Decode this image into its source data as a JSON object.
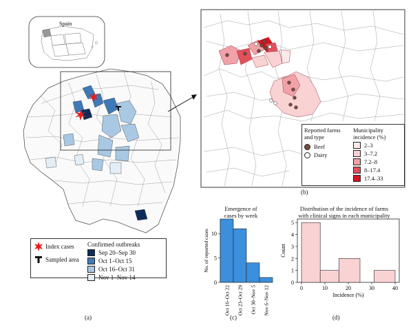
{
  "inset": {
    "label": "Spain"
  },
  "panel_a": {
    "label": "(a)",
    "legend_markers": {
      "index_label": "Index cases",
      "sampled_label": "Sampled area"
    },
    "outbreaks": {
      "title": "Confirmed outbreaks",
      "items": [
        {
          "label": "Sep 20–Sep 30",
          "color": "#0f2d5a"
        },
        {
          "label": "Oct 1–Oct 15",
          "color": "#3f79b8"
        },
        {
          "label": "Oct 16–Oct 31",
          "color": "#a9c8e3"
        },
        {
          "label": "Nov 1–Nov 14",
          "color": "#e4eef7"
        }
      ]
    }
  },
  "panel_b": {
    "label": "(b)",
    "farms_title_1": "Reported farms",
    "farms_title_2": "and type",
    "farm_types": [
      {
        "label": "Beef",
        "color": "#7a4a3e"
      },
      {
        "label": "Dairy",
        "color": "#ffffff"
      }
    ],
    "incidence_title_1": "Municipality",
    "incidence_title_2": "incidence (%)",
    "incidence_classes": [
      {
        "label": "2–3",
        "color": "#fce9ea"
      },
      {
        "label": "3–7.2",
        "color": "#f9d2d4"
      },
      {
        "label": "7.2–8",
        "color": "#f0a2a8"
      },
      {
        "label": "8–17.4",
        "color": "#e2505c"
      },
      {
        "label": "17.4–33",
        "color": "#d71420"
      }
    ]
  },
  "panel_c": {
    "label": "(c)",
    "title_1": "Emergence of",
    "title_2": "cases by week"
  },
  "panel_d": {
    "label": "(d)",
    "title_1": "Distribution of the incidence of farms",
    "title_2": "with clinical signs in each municipality"
  },
  "chart_data": [
    {
      "type": "bar",
      "categories": [
        "Oct 16–Oct 22",
        "Oct 23–Oct 29",
        "Oct 30–Nov 5",
        "Nov 6–Nov 12"
      ],
      "values": [
        13,
        11,
        4,
        1
      ],
      "ylabel": "No. of reported cases",
      "xlabel": "",
      "ylim": [
        0,
        13
      ],
      "yticks": [
        0,
        5,
        10
      ],
      "color": "#3b8fdc"
    },
    {
      "type": "bar",
      "bins": [
        [
          0,
          8
        ],
        [
          8,
          16
        ],
        [
          16,
          25
        ],
        [
          31,
          40
        ]
      ],
      "values": [
        5,
        1,
        2,
        1
      ],
      "xlabel": "Incidence (%)",
      "ylabel": "Count",
      "xlim": [
        0,
        40
      ],
      "ylim": [
        0,
        5.3
      ],
      "xticks": [
        0,
        10,
        20,
        30,
        40
      ],
      "yticks": [
        0,
        1,
        2,
        3,
        4,
        5
      ],
      "color": "#f9d2d4"
    }
  ]
}
